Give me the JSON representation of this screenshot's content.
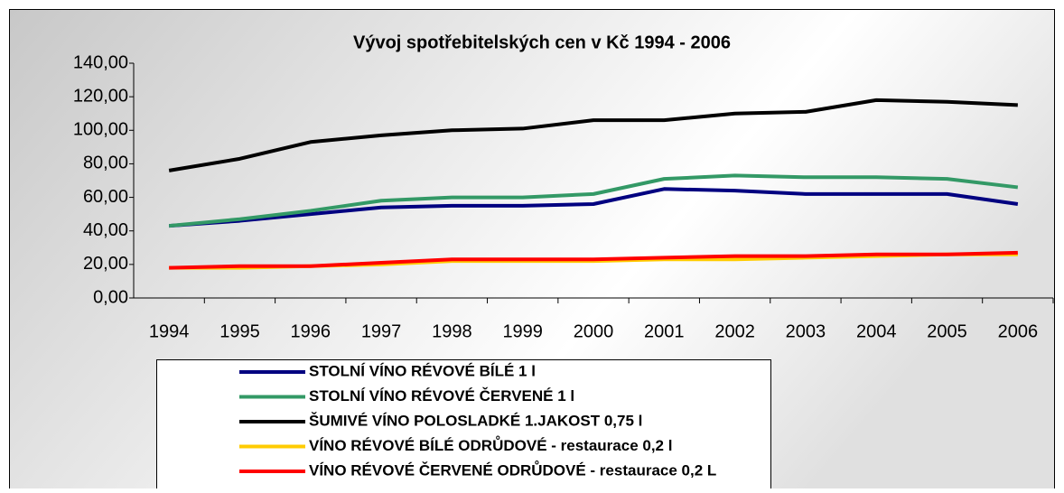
{
  "chart_data": {
    "type": "line",
    "title": "Vývoj spotřebitelských cen v Kč 1994 - 2006",
    "categories": [
      "1994",
      "1995",
      "1996",
      "1997",
      "1998",
      "1999",
      "2000",
      "2001",
      "2002",
      "2003",
      "2004",
      "2005",
      "2006"
    ],
    "ylim": [
      0,
      140
    ],
    "yticks": [
      {
        "value": 0,
        "label": "0,00"
      },
      {
        "value": 20,
        "label": "20,00"
      },
      {
        "value": 40,
        "label": "40,00"
      },
      {
        "value": 60,
        "label": "60,00"
      },
      {
        "value": 80,
        "label": "80,00"
      },
      {
        "value": 100,
        "label": "100,00"
      },
      {
        "value": 120,
        "label": "120,00"
      },
      {
        "value": 140,
        "label": "140,00"
      }
    ],
    "legend": "bottom",
    "series": [
      {
        "name": "STOLNÍ VÍNO RÉVOVÉ BÍLÉ 1 l",
        "color": "#000080",
        "values": [
          43,
          46,
          50,
          54,
          55,
          55,
          56,
          65,
          64,
          62,
          62,
          62,
          56
        ]
      },
      {
        "name": "STOLNÍ VÍNO RÉVOVÉ ČERVENÉ 1 l",
        "color": "#339966",
        "values": [
          43,
          47,
          52,
          58,
          60,
          60,
          62,
          71,
          73,
          72,
          72,
          71,
          66
        ]
      },
      {
        "name": "ŠUMIVÉ VÍNO POLOSLADKÉ 1.JAKOST 0,75 l",
        "color": "#000000",
        "values": [
          76,
          83,
          93,
          97,
          100,
          101,
          106,
          106,
          110,
          111,
          118,
          117,
          115
        ]
      },
      {
        "name": "VÍNO RÉVOVÉ BÍLÉ ODRŮDOVÉ - restaurace 0,2 l",
        "color": "#ffcc00",
        "values": [
          18,
          18,
          19,
          20,
          22,
          22,
          22,
          23,
          23,
          24,
          25,
          26,
          26
        ]
      },
      {
        "name": "VÍNO RÉVOVÉ ČERVENÉ ODRŮDOVÉ - restaurace 0,2 L",
        "color": "#ff0000",
        "values": [
          18,
          19,
          19,
          21,
          23,
          23,
          23,
          24,
          25,
          25,
          26,
          26,
          27
        ]
      }
    ]
  }
}
